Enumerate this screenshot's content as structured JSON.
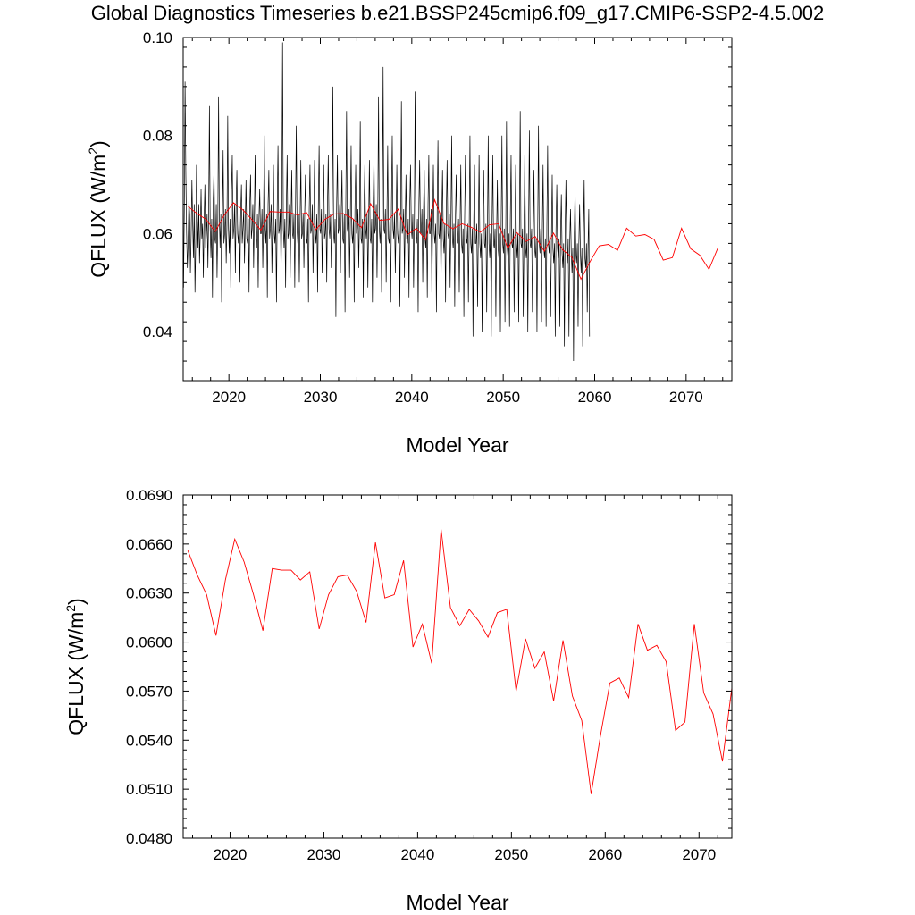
{
  "title": "Global Diagnostics Timeseries b.e21.BSSP245cmip6.f09_g17.CMIP6-SSP2-4.5.002",
  "colors": {
    "monthly": "#000000",
    "annual": "#ff0000",
    "axis": "#000000"
  },
  "chart_data": [
    {
      "type": "line",
      "xlabel": "Model Year",
      "ylabel": "QFLUX (W/m",
      "ylabel_sup": "2",
      "ylabel_close": ")",
      "xlim": [
        2015,
        2075
      ],
      "ylim": [
        0.03,
        0.1
      ],
      "xticks": [
        "2020",
        "2030",
        "2040",
        "2050",
        "2060",
        "2070"
      ],
      "yticks": [
        "0.04",
        "0.06",
        "0.08",
        "0.10"
      ],
      "series": [
        {
          "kind": "monthly",
          "start_year": 2015.04,
          "step_years": 0.0833,
          "values": [
            0.049,
            0.065,
            0.091,
            0.072,
            0.06,
            0.053,
            0.058,
            0.067,
            0.064,
            0.052,
            0.06,
            0.071,
            0.062,
            0.055,
            0.066,
            0.048,
            0.058,
            0.074,
            0.063,
            0.057,
            0.066,
            0.054,
            0.06,
            0.069,
            0.059,
            0.062,
            0.051,
            0.063,
            0.07,
            0.057,
            0.06,
            0.064,
            0.053,
            0.064,
            0.086,
            0.061,
            0.055,
            0.063,
            0.047,
            0.067,
            0.073,
            0.059,
            0.058,
            0.066,
            0.051,
            0.062,
            0.088,
            0.063,
            0.057,
            0.064,
            0.046,
            0.063,
            0.077,
            0.058,
            0.06,
            0.065,
            0.054,
            0.062,
            0.084,
            0.061,
            0.056,
            0.063,
            0.049,
            0.069,
            0.076,
            0.059,
            0.061,
            0.066,
            0.052,
            0.066,
            0.073,
            0.06,
            0.058,
            0.064,
            0.05,
            0.064,
            0.07,
            0.058,
            0.061,
            0.065,
            0.054,
            0.062,
            0.071,
            0.059,
            0.058,
            0.063,
            0.048,
            0.066,
            0.072,
            0.059,
            0.061,
            0.066,
            0.053,
            0.064,
            0.076,
            0.06,
            0.057,
            0.064,
            0.049,
            0.063,
            0.069,
            0.06,
            0.06,
            0.065,
            0.053,
            0.063,
            0.08,
            0.061,
            0.058,
            0.064,
            0.047,
            0.066,
            0.073,
            0.059,
            0.061,
            0.066,
            0.052,
            0.062,
            0.074,
            0.06,
            0.058,
            0.063,
            0.046,
            0.066,
            0.078,
            0.06,
            0.061,
            0.065,
            0.052,
            0.064,
            0.099,
            0.061,
            0.057,
            0.063,
            0.049,
            0.066,
            0.076,
            0.059,
            0.06,
            0.066,
            0.051,
            0.062,
            0.073,
            0.06,
            0.059,
            0.064,
            0.049,
            0.066,
            0.082,
            0.061,
            0.058,
            0.064,
            0.05,
            0.063,
            0.075,
            0.059,
            0.06,
            0.064,
            0.053,
            0.064,
            0.072,
            0.059,
            0.058,
            0.063,
            0.046,
            0.065,
            0.074,
            0.06,
            0.061,
            0.066,
            0.052,
            0.063,
            0.075,
            0.06,
            0.058,
            0.064,
            0.048,
            0.066,
            0.078,
            0.061,
            0.06,
            0.065,
            0.052,
            0.063,
            0.074,
            0.059,
            0.06,
            0.064,
            0.05,
            0.066,
            0.076,
            0.061,
            0.059,
            0.064,
            0.053,
            0.062,
            0.09,
            0.06,
            0.058,
            0.063,
            0.043,
            0.066,
            0.076,
            0.06,
            0.061,
            0.066,
            0.052,
            0.064,
            0.073,
            0.059,
            0.058,
            0.064,
            0.044,
            0.066,
            0.085,
            0.061,
            0.06,
            0.065,
            0.051,
            0.063,
            0.078,
            0.06,
            0.058,
            0.063,
            0.046,
            0.065,
            0.074,
            0.06,
            0.061,
            0.065,
            0.053,
            0.063,
            0.083,
            0.059,
            0.058,
            0.063,
            0.047,
            0.066,
            0.074,
            0.061,
            0.059,
            0.064,
            0.049,
            0.062,
            0.075,
            0.059,
            0.058,
            0.063,
            0.046,
            0.066,
            0.076,
            0.06,
            0.061,
            0.066,
            0.051,
            0.064,
            0.088,
            0.061,
            0.058,
            0.063,
            0.048,
            0.066,
            0.094,
            0.061,
            0.06,
            0.065,
            0.05,
            0.063,
            0.078,
            0.059,
            0.058,
            0.063,
            0.046,
            0.066,
            0.08,
            0.061,
            0.059,
            0.064,
            0.052,
            0.062,
            0.074,
            0.06,
            0.058,
            0.063,
            0.045,
            0.065,
            0.087,
            0.06,
            0.061,
            0.065,
            0.051,
            0.063,
            0.072,
            0.059,
            0.058,
            0.063,
            0.047,
            0.066,
            0.074,
            0.061,
            0.059,
            0.064,
            0.049,
            0.062,
            0.089,
            0.06,
            0.058,
            0.063,
            0.044,
            0.066,
            0.075,
            0.06,
            0.06,
            0.065,
            0.05,
            0.064,
            0.073,
            0.059,
            0.057,
            0.063,
            0.047,
            0.066,
            0.076,
            0.06,
            0.06,
            0.065,
            0.048,
            0.062,
            0.074,
            0.06,
            0.058,
            0.062,
            0.044,
            0.065,
            0.079,
            0.06,
            0.059,
            0.064,
            0.05,
            0.063,
            0.073,
            0.059,
            0.056,
            0.062,
            0.046,
            0.065,
            0.075,
            0.06,
            0.059,
            0.064,
            0.049,
            0.062,
            0.08,
            0.059,
            0.057,
            0.062,
            0.045,
            0.064,
            0.072,
            0.059,
            0.058,
            0.063,
            0.048,
            0.061,
            0.074,
            0.058,
            0.056,
            0.061,
            0.043,
            0.063,
            0.076,
            0.059,
            0.058,
            0.062,
            0.046,
            0.061,
            0.08,
            0.058,
            0.056,
            0.061,
            0.039,
            0.063,
            0.074,
            0.058,
            0.058,
            0.062,
            0.045,
            0.06,
            0.076,
            0.058,
            0.055,
            0.06,
            0.04,
            0.063,
            0.073,
            0.058,
            0.057,
            0.062,
            0.044,
            0.061,
            0.08,
            0.058,
            0.055,
            0.06,
            0.039,
            0.062,
            0.076,
            0.058,
            0.057,
            0.061,
            0.043,
            0.06,
            0.071,
            0.057,
            0.055,
            0.06,
            0.04,
            0.062,
            0.08,
            0.058,
            0.056,
            0.061,
            0.042,
            0.06,
            0.083,
            0.057,
            0.055,
            0.06,
            0.041,
            0.063,
            0.076,
            0.058,
            0.057,
            0.061,
            0.044,
            0.06,
            0.074,
            0.058,
            0.055,
            0.06,
            0.042,
            0.062,
            0.085,
            0.058,
            0.057,
            0.061,
            0.043,
            0.06,
            0.076,
            0.057,
            0.055,
            0.06,
            0.04,
            0.062,
            0.081,
            0.058,
            0.057,
            0.061,
            0.044,
            0.06,
            0.073,
            0.057,
            0.055,
            0.059,
            0.04,
            0.062,
            0.082,
            0.058,
            0.056,
            0.061,
            0.042,
            0.06,
            0.074,
            0.057,
            0.055,
            0.059,
            0.041,
            0.062,
            0.078,
            0.058,
            0.056,
            0.06,
            0.043,
            0.059,
            0.072,
            0.057,
            0.054,
            0.058,
            0.039,
            0.061,
            0.07,
            0.057,
            0.055,
            0.059,
            0.041,
            0.06,
            0.068,
            0.056,
            0.053,
            0.058,
            0.037,
            0.061,
            0.071,
            0.057,
            0.054,
            0.059,
            0.039,
            0.058,
            0.065,
            0.056,
            0.052,
            0.057,
            0.034,
            0.06,
            0.069,
            0.056,
            0.054,
            0.058,
            0.041,
            0.058,
            0.066,
            0.056,
            0.052,
            0.057,
            0.037,
            0.06,
            0.071,
            0.055,
            0.053,
            0.058,
            0.044,
            0.057,
            0.065,
            0.039
          ]
        },
        {
          "kind": "annual",
          "start_year": 2015.5,
          "step_years": 1,
          "values": [
            0.0656,
            0.0641,
            0.0629,
            0.0604,
            0.0638,
            0.0663,
            0.0649,
            0.0629,
            0.0607,
            0.0645,
            0.0644,
            0.0644,
            0.0638,
            0.0643,
            0.0608,
            0.0629,
            0.064,
            0.0641,
            0.0631,
            0.0612,
            0.0661,
            0.0627,
            0.0629,
            0.065,
            0.0597,
            0.0611,
            0.0587,
            0.0669,
            0.0621,
            0.061,
            0.062,
            0.0613,
            0.0603,
            0.0618,
            0.062,
            0.057,
            0.0602,
            0.0584,
            0.0594,
            0.0564,
            0.0601,
            0.0567,
            0.0552,
            0.0507,
            0.0543,
            0.0575,
            0.0578,
            0.0566,
            0.0611,
            0.0595,
            0.0598,
            0.0588,
            0.0546,
            0.0551,
            0.0611,
            0.0569,
            0.0556,
            0.0527,
            0.0572
          ]
        }
      ]
    },
    {
      "type": "line",
      "xlabel": "Model Year",
      "ylabel": "QFLUX (W/m",
      "ylabel_sup": "2",
      "ylabel_close": ")",
      "xlim": [
        2015,
        2073.5
      ],
      "ylim": [
        0.048,
        0.069
      ],
      "xticks": [
        "2020",
        "2030",
        "2040",
        "2050",
        "2060",
        "2070"
      ],
      "yticks": [
        "0.0480",
        "0.0510",
        "0.0540",
        "0.0570",
        "0.0600",
        "0.0630",
        "0.0660",
        "0.0690"
      ],
      "series": [
        {
          "kind": "annual",
          "ref": 1
        }
      ]
    }
  ]
}
